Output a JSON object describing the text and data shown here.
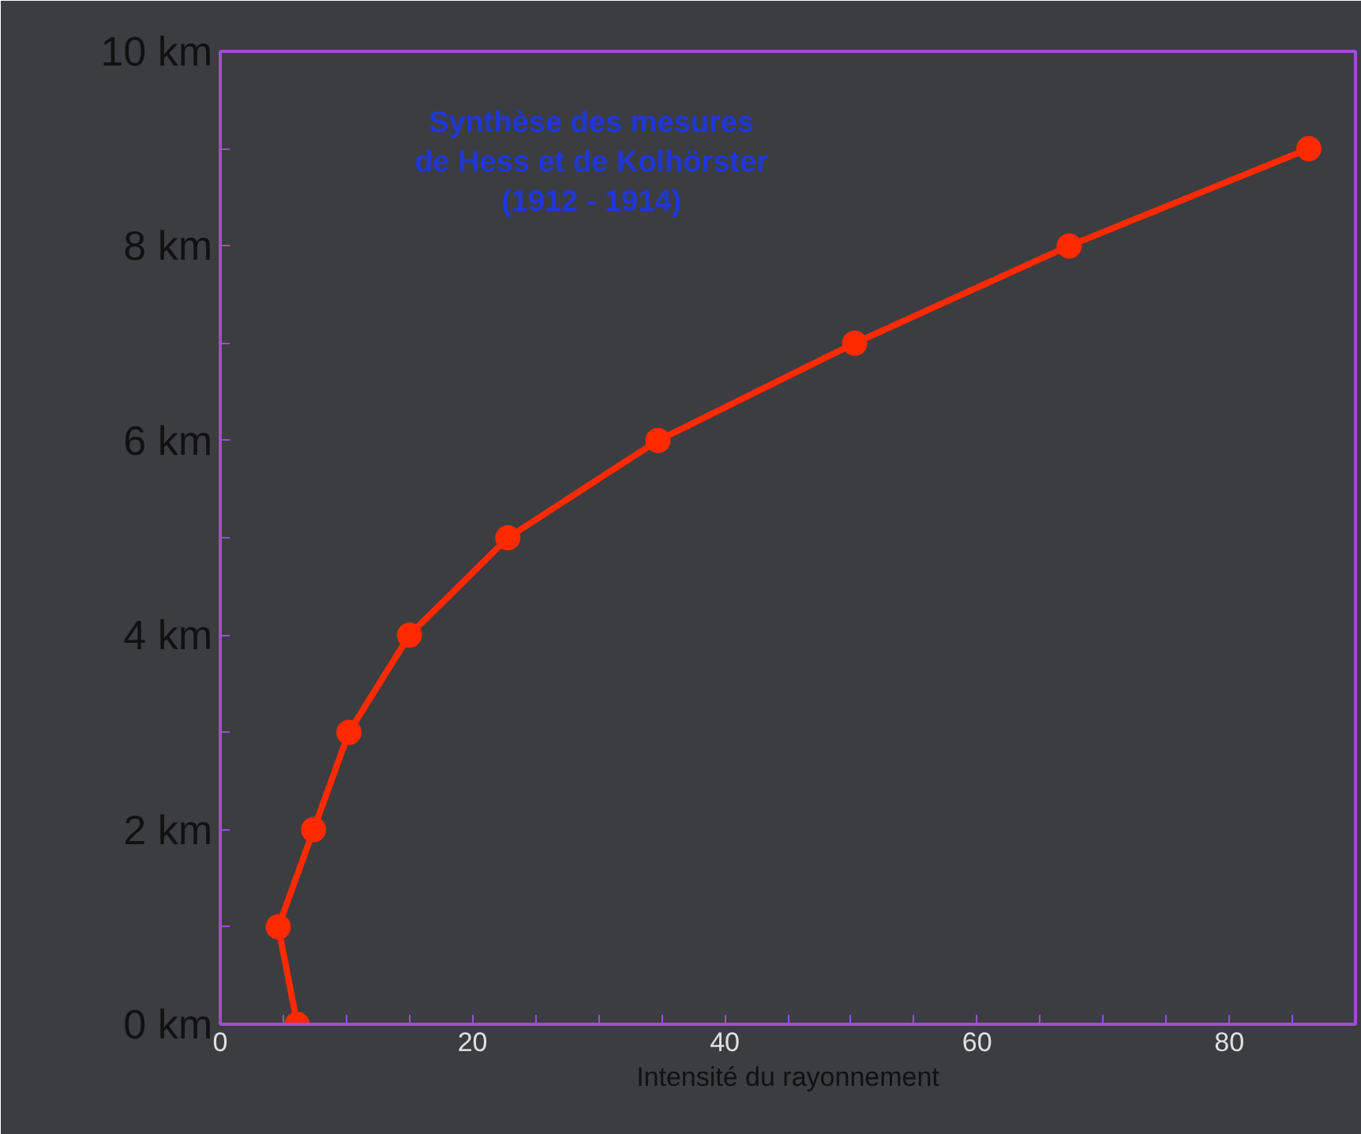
{
  "chart_data": {
    "type": "line",
    "title": "Synthèse des mesures\nde Hess et de Kolhörster\n(1912 - 1914)",
    "xlabel": "Intensité du rayonnement",
    "x": [
      6.1,
      4.6,
      7.4,
      10.2,
      15,
      22.8,
      34.7,
      50.3,
      67.3,
      86.3
    ],
    "series": [
      {
        "color": "#ff2a00",
        "values": [
          0,
          1,
          2,
          3,
          4,
          5,
          6,
          7,
          8,
          9
        ]
      }
    ],
    "xlim": [
      0,
      90
    ],
    "ylim": [
      0,
      10
    ],
    "xticks": [
      0,
      {
        "value": 5,
        "label": null
      },
      {
        "value": 10,
        "label": null
      },
      {
        "value": 15,
        "label": null
      },
      20,
      {
        "value": 25,
        "label": null
      },
      {
        "value": 30,
        "label": null
      },
      {
        "value": 35,
        "label": null
      },
      40,
      {
        "value": 45,
        "label": null
      },
      {
        "value": 50,
        "label": null
      },
      {
        "value": 55,
        "label": null
      },
      60,
      {
        "value": 65,
        "label": null
      },
      {
        "value": 70,
        "label": null
      },
      {
        "value": 75,
        "label": null
      },
      80,
      {
        "value": 85,
        "label": null
      }
    ],
    "yticks": [
      {
        "value": 0,
        "label": "0 km"
      },
      {
        "value": 1,
        "label": null
      },
      {
        "value": 2,
        "label": "2 km"
      },
      {
        "value": 3,
        "label": null
      },
      {
        "value": 4,
        "label": "4 km"
      },
      {
        "value": 5,
        "label": null
      },
      {
        "value": 6,
        "label": "6 km"
      },
      {
        "value": 7,
        "label": null
      },
      {
        "value": 8,
        "label": "8 km"
      },
      {
        "value": 9,
        "label": null
      },
      {
        "value": 10,
        "label": "10 km"
      }
    ],
    "grid": false,
    "marker": "circle",
    "line_style": "solid"
  }
}
